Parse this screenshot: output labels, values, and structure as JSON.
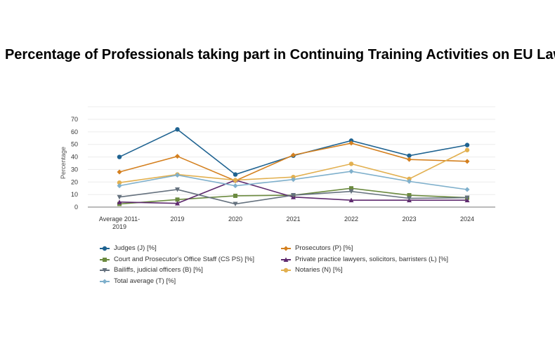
{
  "chart_data": {
    "type": "line",
    "title": "Percentage of Professionals taking part in Continuing Training Activities on EU Law",
    "xlabel": "",
    "ylabel": "Percentage",
    "categories": [
      "Average 2011-2019",
      "2019",
      "2020",
      "2021",
      "2022",
      "2023",
      "2024"
    ],
    "ylim": [
      0,
      70
    ],
    "yticks": [
      0,
      10,
      20,
      30,
      40,
      50,
      60,
      70
    ],
    "grid": true,
    "legend_position": "bottom",
    "series": [
      {
        "name": "Judges (J) [%]",
        "color": "#1f6391",
        "marker": "circle",
        "values": [
          40,
          62,
          26,
          41,
          53,
          41,
          49.5
        ]
      },
      {
        "name": "Prosecutors (P) [%]",
        "color": "#d4801f",
        "marker": "diamond",
        "values": [
          28,
          40.5,
          21,
          41.5,
          51,
          38,
          36.5
        ]
      },
      {
        "name": "Court and Prosecutor's Office Staff (CS PS) [%]",
        "color": "#6b8a3f",
        "marker": "square",
        "values": [
          2.5,
          6,
          9,
          9.5,
          15,
          9.5,
          7.5
        ]
      },
      {
        "name": "Private practice lawyers, solicitors, barristers (L) [%]",
        "color": "#5e2a6e",
        "marker": "triangle",
        "values": [
          4,
          3,
          21.5,
          8,
          5.5,
          5.5,
          5.5
        ]
      },
      {
        "name": "Bailiffs, judicial officers (B) [%]",
        "color": "#65717e",
        "marker": "triangle-down",
        "values": [
          8,
          14,
          2.5,
          9.5,
          12.5,
          7,
          7.5
        ]
      },
      {
        "name": "Notaries (N) [%]",
        "color": "#e2b050",
        "marker": "circle",
        "values": [
          19.5,
          26,
          21.5,
          24,
          34.5,
          22.5,
          45.5
        ]
      },
      {
        "name": "Total average (T) [%]",
        "color": "#7fb0cc",
        "marker": "diamond",
        "values": [
          17,
          25.5,
          17,
          22,
          28.5,
          20.5,
          14
        ]
      }
    ]
  }
}
